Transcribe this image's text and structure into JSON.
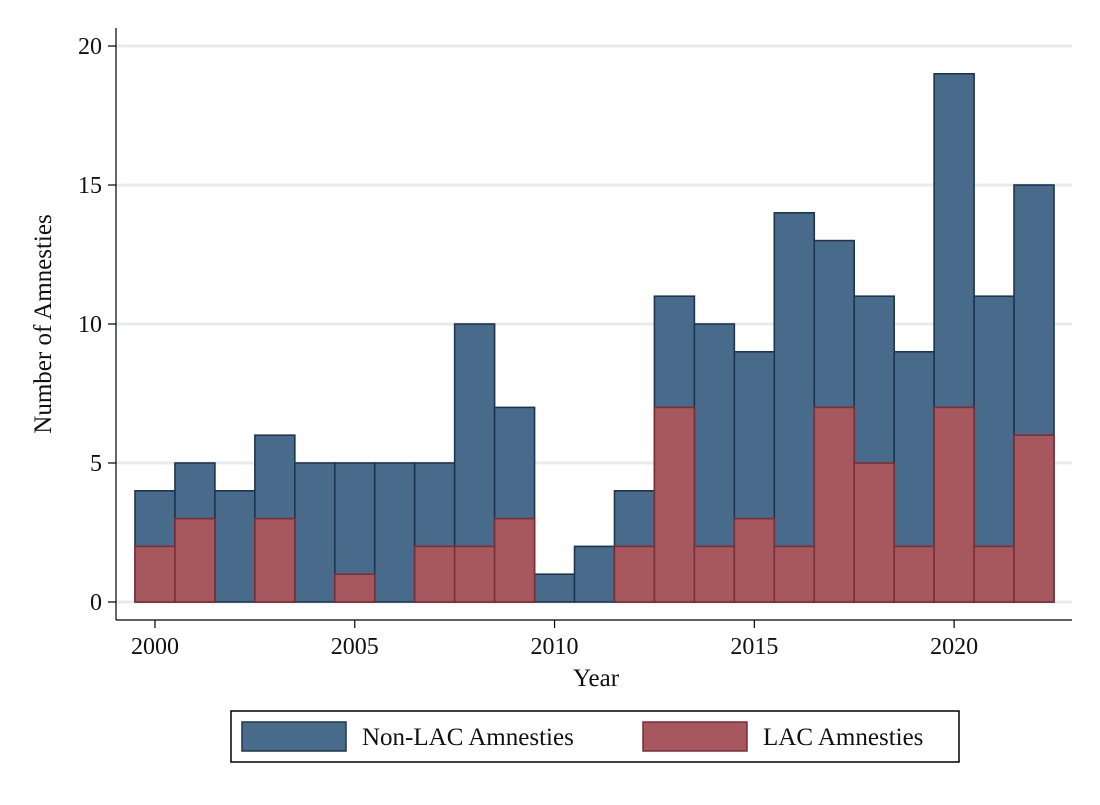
{
  "chart_data": {
    "type": "bar",
    "stacking": "overlay",
    "xlabel": "Year",
    "ylabel": "Number of Amnesties",
    "ylim": [
      0,
      20
    ],
    "yticks": [
      "0",
      "5",
      "10",
      "15",
      "20"
    ],
    "xticks": [
      "2000",
      "2005",
      "2010",
      "2015",
      "2020"
    ],
    "xrange": [
      1999.5,
      2022.5
    ],
    "grid": true,
    "legend_position": "bottom",
    "categories": [
      2000,
      2001,
      2002,
      2003,
      2004,
      2005,
      2006,
      2007,
      2008,
      2009,
      2010,
      2011,
      2012,
      2013,
      2014,
      2015,
      2016,
      2017,
      2018,
      2019,
      2020,
      2021,
      2022
    ],
    "series": [
      {
        "name": "Non-LAC Amnesties",
        "color": "#486b8c",
        "edge_color": "#1e3550",
        "values": [
          4,
          5,
          4,
          6,
          5,
          5,
          5,
          5,
          10,
          7,
          1,
          2,
          4,
          11,
          10,
          9,
          14,
          13,
          11,
          9,
          19,
          11,
          15
        ]
      },
      {
        "name": "LAC Amnesties",
        "color": "#a7585f",
        "edge_color": "#7a2e36",
        "values": [
          2,
          3,
          0,
          3,
          0,
          1,
          0,
          2,
          2,
          3,
          0,
          0,
          2,
          7,
          2,
          3,
          2,
          7,
          5,
          2,
          7,
          2,
          6
        ]
      }
    ]
  }
}
